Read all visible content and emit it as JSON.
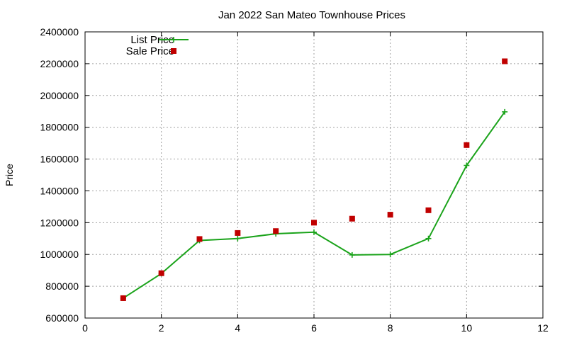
{
  "chart_data": {
    "type": "line",
    "title": "Jan 2022 San Mateo Townhouse Prices",
    "xlabel": "",
    "ylabel": "Price",
    "xlim": [
      0,
      12
    ],
    "ylim": [
      600000,
      2400000
    ],
    "xticks": [
      0,
      2,
      4,
      6,
      8,
      10,
      12
    ],
    "yticks": [
      600000,
      800000,
      1000000,
      1200000,
      1400000,
      1600000,
      1800000,
      2000000,
      2200000,
      2400000
    ],
    "grid": true,
    "legend_position": "top-left",
    "series": [
      {
        "name": "List Price",
        "style": "line-with-plus-markers",
        "color": "#1aa31a",
        "x": [
          1,
          2,
          3,
          4,
          5,
          6,
          7,
          8,
          9,
          10,
          11
        ],
        "y": [
          725000,
          880000,
          1088000,
          1100000,
          1130000,
          1140000,
          997000,
          1000000,
          1100000,
          1560000,
          1897000
        ]
      },
      {
        "name": "Sale Price",
        "style": "square-markers",
        "color": "#c00000",
        "x": [
          1,
          2,
          3,
          4,
          5,
          6,
          7,
          8,
          9,
          10,
          11
        ],
        "y": [
          725000,
          882000,
          1097000,
          1135000,
          1147000,
          1200000,
          1225000,
          1250000,
          1278000,
          1688000,
          2215000
        ]
      }
    ]
  }
}
